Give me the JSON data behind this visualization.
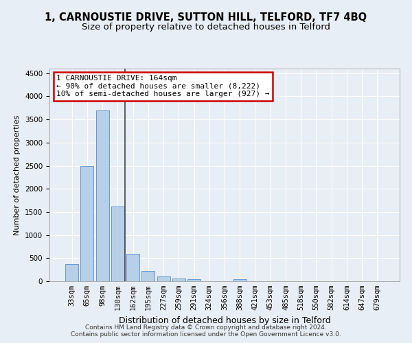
{
  "title": "1, CARNOUSTIE DRIVE, SUTTON HILL, TELFORD, TF7 4BQ",
  "subtitle": "Size of property relative to detached houses in Telford",
  "xlabel": "Distribution of detached houses by size in Telford",
  "ylabel": "Number of detached properties",
  "categories": [
    "33sqm",
    "65sqm",
    "98sqm",
    "130sqm",
    "162sqm",
    "195sqm",
    "227sqm",
    "259sqm",
    "291sqm",
    "324sqm",
    "356sqm",
    "388sqm",
    "421sqm",
    "453sqm",
    "485sqm",
    "518sqm",
    "550sqm",
    "582sqm",
    "614sqm",
    "647sqm",
    "679sqm"
  ],
  "values": [
    370,
    2500,
    3700,
    1620,
    590,
    230,
    105,
    60,
    40,
    0,
    0,
    50,
    0,
    0,
    0,
    0,
    0,
    0,
    0,
    0,
    0
  ],
  "bar_color": "#b8cfe8",
  "bar_edge_color": "#6699cc",
  "vline_x": 4,
  "annotation_text": "1 CARNOUSTIE DRIVE: 164sqm\n← 90% of detached houses are smaller (8,222)\n10% of semi-detached houses are larger (927) →",
  "annotation_box_edge_color": "#cc0000",
  "ylim": [
    0,
    4600
  ],
  "yticks": [
    0,
    500,
    1000,
    1500,
    2000,
    2500,
    3000,
    3500,
    4000,
    4500
  ],
  "bg_color": "#e8eef5",
  "plot_bg_color": "#e8eef5",
  "footer_text": "Contains HM Land Registry data © Crown copyright and database right 2024.\nContains public sector information licensed under the Open Government Licence v3.0.",
  "grid_color": "#ffffff",
  "title_fontsize": 10.5,
  "subtitle_fontsize": 9.5,
  "ylabel_fontsize": 8,
  "xlabel_fontsize": 9,
  "tick_fontsize": 7.5,
  "annotation_fontsize": 8,
  "footer_fontsize": 6.5
}
